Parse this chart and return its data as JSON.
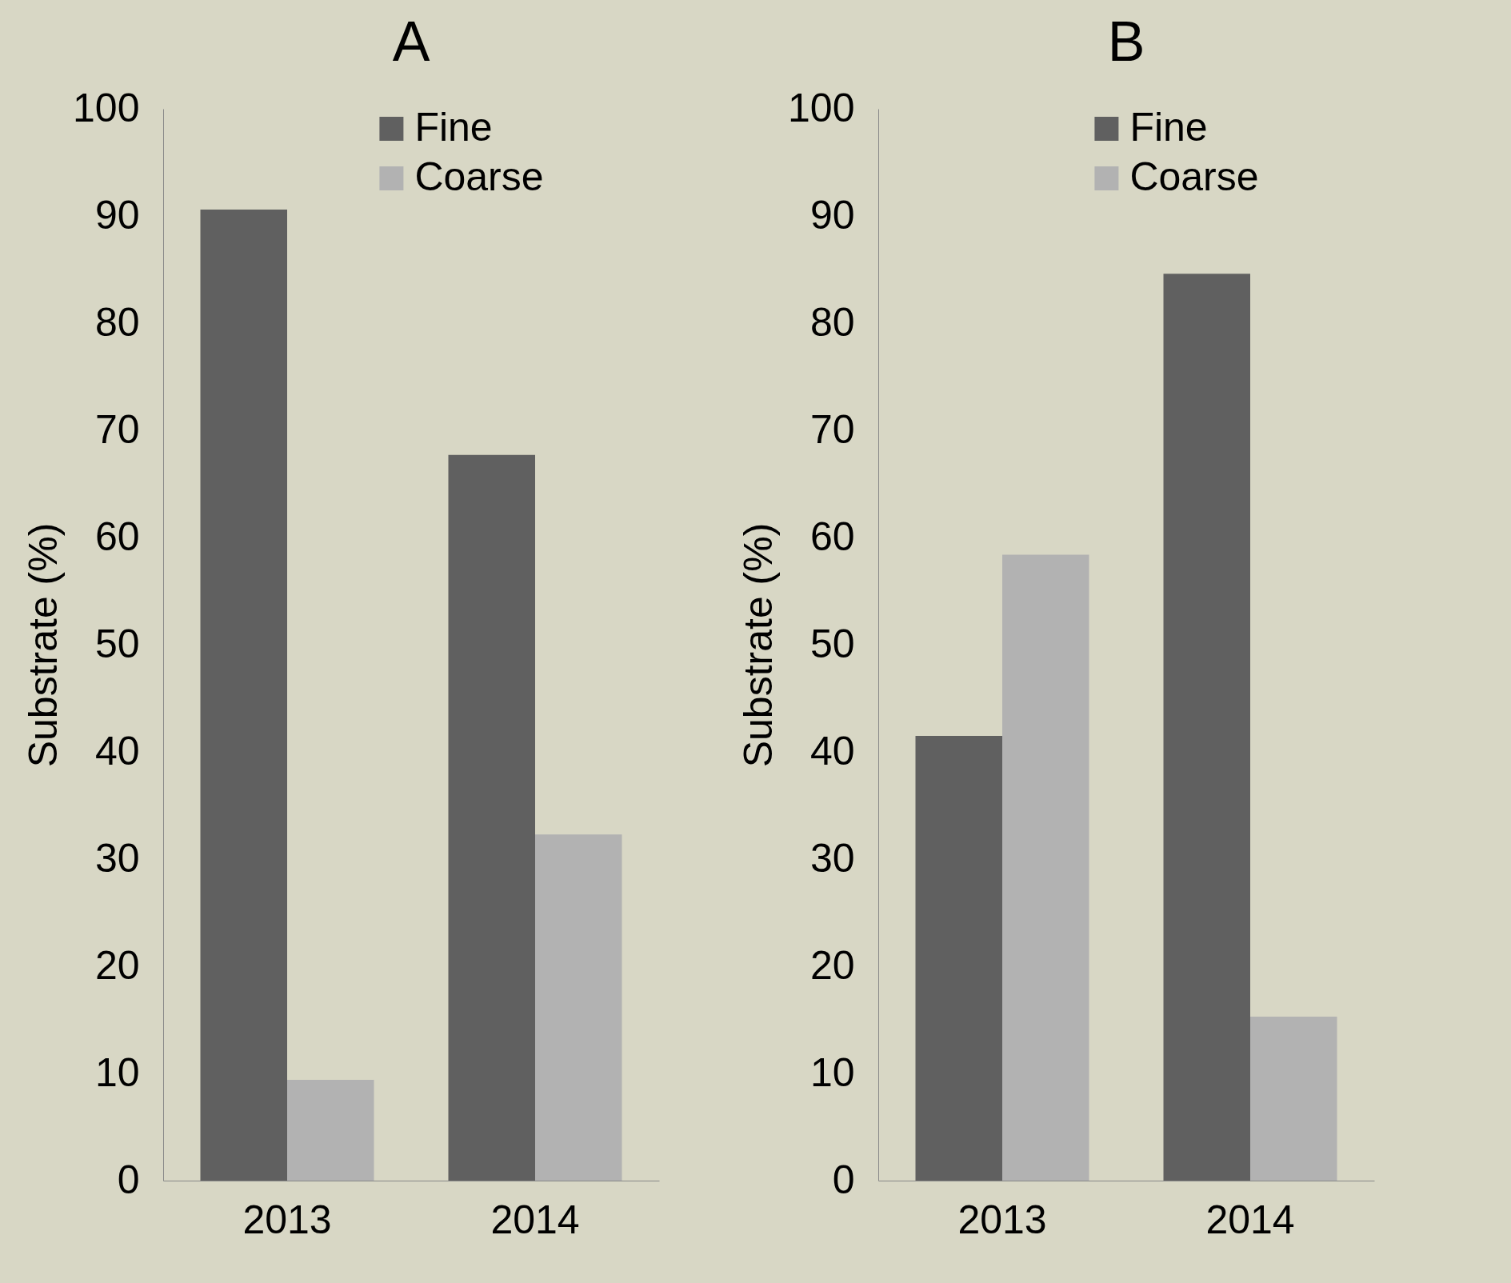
{
  "chart_data": [
    {
      "type": "bar",
      "title": "A",
      "ylabel": "Substrate (%)",
      "categories": [
        "2013",
        "2014"
      ],
      "series": [
        {
          "name": "Fine",
          "color": "#606060",
          "values": [
            90.6,
            67.7
          ]
        },
        {
          "name": "Coarse",
          "color": "#b2b2b2",
          "values": [
            9.4,
            32.3
          ]
        }
      ],
      "ylim": [
        0,
        100
      ],
      "yticks": [
        0,
        10,
        20,
        30,
        40,
        50,
        60,
        70,
        80,
        90,
        100
      ],
      "grid": false,
      "legend": "top"
    },
    {
      "type": "bar",
      "title": "B",
      "ylabel": "Substrate (%)",
      "categories": [
        "2013",
        "2014"
      ],
      "series": [
        {
          "name": "Fine",
          "color": "#606060",
          "values": [
            41.5,
            84.6
          ]
        },
        {
          "name": "Coarse",
          "color": "#b2b2b2",
          "values": [
            58.4,
            15.3
          ]
        }
      ],
      "ylim": [
        0,
        100
      ],
      "yticks": [
        0,
        10,
        20,
        30,
        40,
        50,
        60,
        70,
        80,
        90,
        100
      ],
      "grid": false,
      "legend": "top"
    }
  ]
}
